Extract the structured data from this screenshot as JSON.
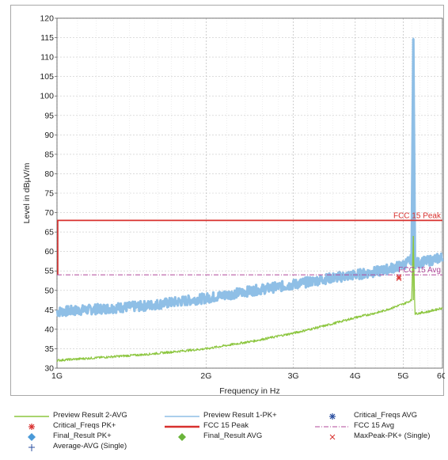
{
  "chart_data": {
    "type": "line",
    "xlabel": "Frequency in Hz",
    "ylabel": "Level in dBµV/m",
    "x_scale": "log",
    "xlim": [
      1000000000,
      6000000000
    ],
    "ylim": [
      30,
      120
    ],
    "x_ticks": [
      {
        "value": 1000000000,
        "label": "1G"
      },
      {
        "value": 2000000000,
        "label": "2G"
      },
      {
        "value": 3000000000,
        "label": "3G"
      },
      {
        "value": 4000000000,
        "label": "4G"
      },
      {
        "value": 5000000000,
        "label": "5G"
      },
      {
        "value": 6000000000,
        "label": "6G"
      }
    ],
    "y_ticks": [
      30,
      35,
      40,
      45,
      50,
      55,
      60,
      65,
      70,
      75,
      80,
      85,
      90,
      95,
      100,
      105,
      110,
      115,
      120
    ],
    "grid": true,
    "series": [
      {
        "name": "Preview Result 1-PK+",
        "color": "#8fbfe6",
        "style": "band",
        "x": [
          1000000000,
          1500000000,
          2000000000,
          2500000000,
          3000000000,
          3500000000,
          4000000000,
          4500000000,
          5000000000,
          5200000000,
          5240000000,
          5280000000,
          5600000000,
          6000000000
        ],
        "y": [
          44.5,
          46,
          48,
          50,
          51.5,
          53,
          54,
          55,
          56.5,
          58,
          115,
          57,
          57.5,
          58.5
        ]
      },
      {
        "name": "Preview Result 2-AVG",
        "color": "#8cc63f",
        "style": "line",
        "x": [
          1000000000,
          1500000000,
          2000000000,
          2500000000,
          3000000000,
          3500000000,
          4000000000,
          4500000000,
          5000000000,
          5200000000,
          5240000000,
          5280000000,
          5600000000,
          6000000000
        ],
        "y": [
          32,
          33.5,
          35,
          37,
          39,
          41,
          43,
          44.5,
          46.5,
          47.5,
          64,
          44,
          44.5,
          45.5
        ]
      },
      {
        "name": "FCC 15 Peak",
        "color": "#d8302e",
        "style": "limit",
        "x": [
          1000000000,
          6000000000
        ],
        "y": [
          68,
          68
        ]
      },
      {
        "name": "FCC 15 Avg",
        "color": "#b0479a",
        "style": "limit-dashdot",
        "x": [
          1000000000,
          6000000000
        ],
        "y": [
          54,
          54
        ]
      },
      {
        "name": "MaxPeak-PK+ (Single)",
        "color": "#d8302e",
        "style": "marker-x",
        "x": [
          4900000000
        ],
        "y": [
          53.5
        ]
      }
    ],
    "annotations": [
      {
        "text": "FCC 15 Peak",
        "y": 68,
        "color": "#d8302e"
      },
      {
        "text": "FCC 15 Avg",
        "y": 54,
        "color": "#b0479a"
      }
    ]
  },
  "legend": [
    {
      "label": "Preview Result 2-AVG",
      "symbol": "line",
      "color": "#8cc63f"
    },
    {
      "label": "Preview Result 1-PK+",
      "symbol": "line",
      "color": "#8fbfe6"
    },
    {
      "label": "Critical_Freqs AVG",
      "symbol": "star",
      "color": "#2b4fa0"
    },
    {
      "label": "Critical_Freqs PK+",
      "symbol": "star",
      "color": "#d8302e"
    },
    {
      "label": "FCC 15 Peak",
      "symbol": "thick-line",
      "color": "#d8302e"
    },
    {
      "label": "FCC 15 Avg",
      "symbol": "dashdot",
      "color": "#b0479a"
    },
    {
      "label": "Final_Result PK+",
      "symbol": "diamond",
      "color": "#4a9ad8"
    },
    {
      "label": "Final_Result AVG",
      "symbol": "diamond",
      "color": "#6ab43a"
    },
    {
      "label": "MaxPeak-PK+ (Single)",
      "symbol": "x",
      "color": "#d8302e"
    },
    {
      "label": "Average-AVG (Single)",
      "symbol": "plus",
      "color": "#2b4fa0"
    }
  ]
}
